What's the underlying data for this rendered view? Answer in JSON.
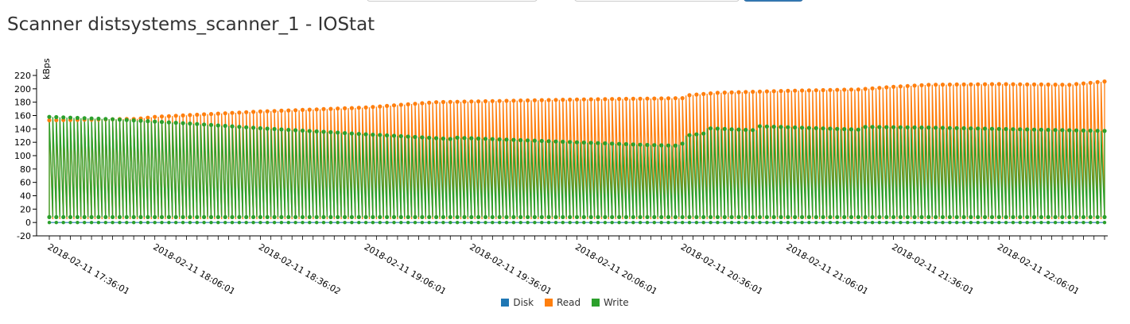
{
  "page": {
    "title": "Scanner distsystems_scanner_1 - IOStat"
  },
  "colors": {
    "disk": "#1f77b4",
    "read": "#ff7f0e",
    "write": "#2ca02c"
  },
  "chart_data": {
    "type": "line",
    "ylabel": "kBps",
    "ylim": [
      -20,
      220
    ],
    "yticks": [
      -20,
      0,
      20,
      40,
      60,
      80,
      100,
      120,
      140,
      160,
      180,
      200,
      220
    ],
    "xticks": [
      "2018-02-11 17:36:01",
      "2018-02-11 18:06:01",
      "2018-02-11 18:36:02",
      "2018-02-11 19:06:01",
      "2018-02-11 19:36:01",
      "2018-02-11 20:06:01",
      "2018-02-11 20:36:01",
      "2018-02-11 21:06:01",
      "2018-02-11 21:36:01",
      "2018-02-11 22:06:01"
    ],
    "xrange": [
      "2018-02-11 17:36:01",
      "2018-02-11 22:36:01"
    ],
    "sample_interval_seconds": 60,
    "legend_position": "bottom-center",
    "series": [
      {
        "name": "Disk",
        "color": "#1f77b4",
        "values_low": 0,
        "values_high": 0
      },
      {
        "name": "Read",
        "color": "#ff7f0e",
        "values_low": 5,
        "envelope": [
          [
            0,
            153
          ],
          [
            25,
            155
          ],
          [
            30,
            158
          ],
          [
            60,
            166
          ],
          [
            90,
            172
          ],
          [
            110,
            180
          ],
          [
            130,
            182
          ],
          [
            150,
            184
          ],
          [
            180,
            186
          ],
          [
            181,
            190
          ],
          [
            190,
            194
          ],
          [
            210,
            197
          ],
          [
            230,
            199
          ],
          [
            240,
            203
          ],
          [
            250,
            206
          ],
          [
            270,
            207
          ],
          [
            290,
            206
          ],
          [
            300,
            211
          ]
        ]
      },
      {
        "name": "Write",
        "color": "#2ca02c",
        "values_low": 8,
        "envelope": [
          [
            0,
            158
          ],
          [
            20,
            154
          ],
          [
            40,
            148
          ],
          [
            60,
            141
          ],
          [
            90,
            132
          ],
          [
            114,
            125
          ],
          [
            115,
            127
          ],
          [
            140,
            122
          ],
          [
            170,
            116
          ],
          [
            178,
            115
          ],
          [
            180,
            118
          ],
          [
            181,
            130
          ],
          [
            186,
            133
          ],
          [
            187,
            141
          ],
          [
            201,
            138
          ],
          [
            202,
            144
          ],
          [
            230,
            139
          ],
          [
            231,
            143
          ],
          [
            250,
            142
          ],
          [
            300,
            137
          ]
        ]
      }
    ],
    "grid": false
  },
  "legend": {
    "items": [
      {
        "label": "Disk"
      },
      {
        "label": "Read"
      },
      {
        "label": "Write"
      }
    ]
  }
}
